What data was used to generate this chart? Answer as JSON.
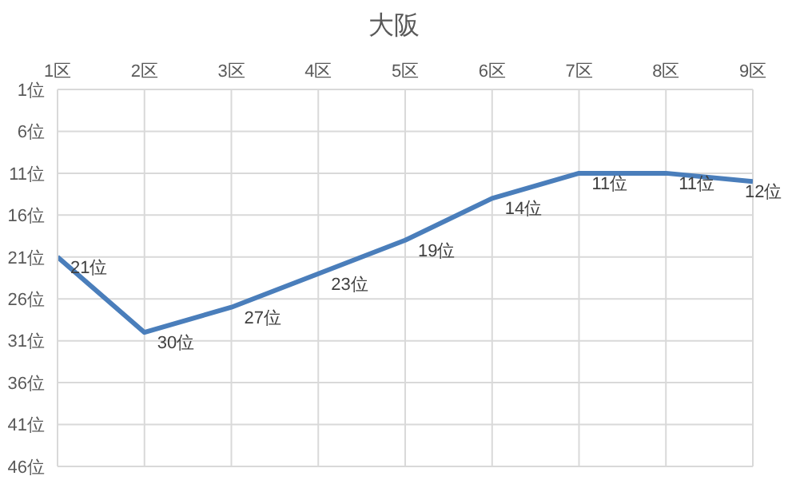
{
  "chart_data": {
    "type": "line",
    "title": "大阪",
    "categories": [
      "1区",
      "2区",
      "3区",
      "4区",
      "5区",
      "6区",
      "7区",
      "8区",
      "9区"
    ],
    "series": [
      {
        "color": "#4a7ebb",
        "values": [
          21,
          30,
          27,
          23,
          19,
          14,
          11,
          11,
          12
        ],
        "value_labels": [
          "21位",
          "30位",
          "27位",
          "23位",
          "19位",
          "14位",
          "11位",
          "11位",
          "12位"
        ]
      }
    ],
    "ylim": [
      46,
      1
    ],
    "yticks": [
      {
        "value": 1,
        "label": "1位"
      },
      {
        "value": 6,
        "label": "6位"
      },
      {
        "value": 11,
        "label": "11位"
      },
      {
        "value": 16,
        "label": "16位"
      },
      {
        "value": 21,
        "label": "21位"
      },
      {
        "value": 26,
        "label": "26位"
      },
      {
        "value": 31,
        "label": "31位"
      },
      {
        "value": 36,
        "label": "36位"
      },
      {
        "value": 41,
        "label": "41位"
      },
      {
        "value": 46,
        "label": "46位"
      }
    ],
    "grid": true,
    "marker": "none",
    "line_style": "solid"
  }
}
